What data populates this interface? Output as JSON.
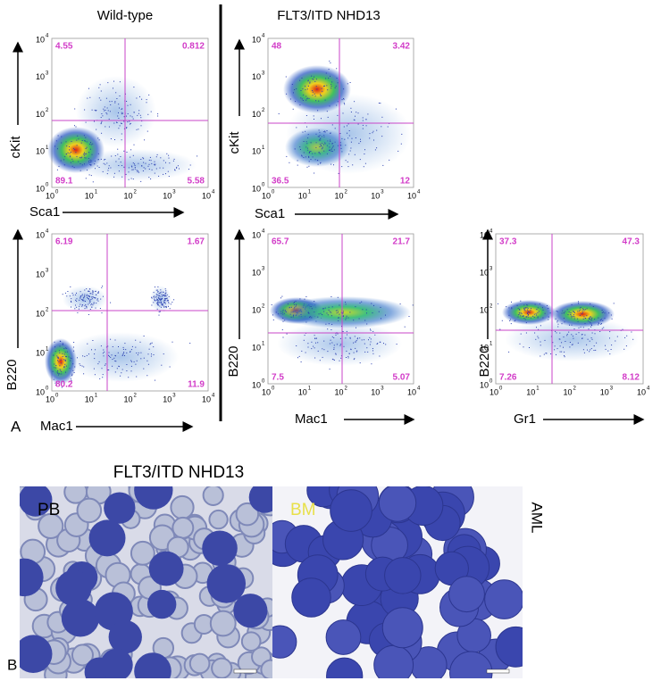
{
  "panel_a": {
    "label": "A",
    "groups": [
      {
        "title": "Wild-type"
      },
      {
        "title": "FLT3/ITD NHD13"
      }
    ],
    "axis_ticks": [
      {
        "base": "10",
        "exp": "0"
      },
      {
        "base": "10",
        "exp": "1"
      },
      {
        "base": "10",
        "exp": "2"
      },
      {
        "base": "10",
        "exp": "3"
      },
      {
        "base": "10",
        "exp": "4"
      }
    ],
    "plots": [
      {
        "x_label": "Sca1",
        "y_label": "cKit",
        "quadrants": [
          4.55,
          0.812,
          89.1,
          5.58
        ]
      },
      {
        "x_label": "Mac1",
        "y_label": "B220",
        "quadrants": [
          6.19,
          1.67,
          80.2,
          11.9
        ]
      },
      {
        "x_label": "Sca1",
        "y_label": "cKit",
        "quadrants": [
          48,
          3.42,
          36.5,
          12
        ]
      },
      {
        "x_label": "Mac1",
        "y_label": "B220",
        "quadrants": [
          65.7,
          21.7,
          7.5,
          5.07
        ]
      },
      {
        "x_label": "Gr1",
        "y_label": "B220",
        "quadrants": [
          37.3,
          47.3,
          7.26,
          8.12
        ]
      }
    ]
  },
  "panel_b": {
    "label": "B",
    "title": "FLT3/ITD NHD13",
    "images": [
      {
        "label": "PB"
      },
      {
        "label": "BM"
      }
    ],
    "side_label": "AML"
  }
}
